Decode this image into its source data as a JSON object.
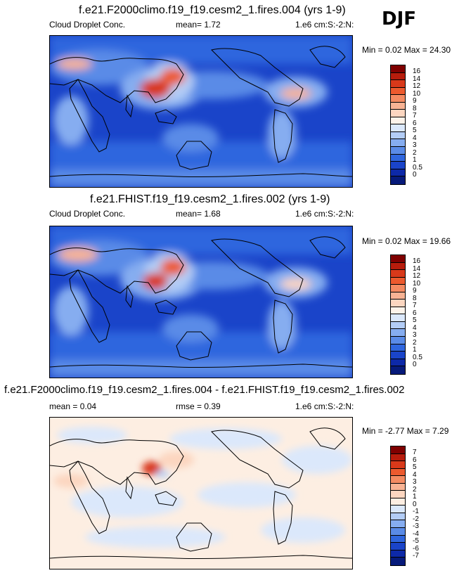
{
  "season": "DJF",
  "panels": [
    {
      "title": "f.e21.F2000climo.f19_f19.cesm2_1.fires.004 (yrs 1-9)",
      "variable": "Cloud Droplet Conc.",
      "mean": "mean=   1.72",
      "units": "1.e6 cm:S:-2:N:",
      "minmax": "Min =   0.02 Max =  24.30",
      "levels": [
        "16",
        "14",
        "12",
        "10",
        "9",
        "8",
        "7",
        "6",
        "5",
        "4",
        "3",
        "2",
        "1",
        "0.5",
        "0"
      ],
      "colors": [
        "#7f0000",
        "#b71c0c",
        "#d8391a",
        "#ec5a2e",
        "#f48b62",
        "#f8b394",
        "#fcd6c0",
        "#fdf3ea",
        "#dbe8fb",
        "#b3cdf6",
        "#86adf0",
        "#5a8be7",
        "#2f66de",
        "#1a44c9",
        "#0d29a8",
        "#061a7a"
      ],
      "overlay": "base"
    },
    {
      "title": "f.e21.FHIST.f19_f19.cesm2_1.fires.002 (yrs 1-9)",
      "variable": "Cloud Droplet Conc.",
      "mean": "mean=   1.68",
      "units": "1.e6 cm:S:-2:N:",
      "minmax": "Min =   0.02 Max =  19.66",
      "levels": [
        "16",
        "14",
        "12",
        "10",
        "9",
        "8",
        "7",
        "6",
        "5",
        "4",
        "3",
        "2",
        "1",
        "0.5",
        "0"
      ],
      "colors": [
        "#7f0000",
        "#b71c0c",
        "#d8391a",
        "#ec5a2e",
        "#f48b62",
        "#f8b394",
        "#fcd6c0",
        "#fdf3ea",
        "#dbe8fb",
        "#b3cdf6",
        "#86adf0",
        "#5a8be7",
        "#2f66de",
        "#1a44c9",
        "#0d29a8",
        "#061a7a"
      ],
      "overlay": "base"
    },
    {
      "title": "f.e21.F2000climo.f19_f19.cesm2_1.fires.004 - f.e21.FHIST.f19_f19.cesm2_1.fires.002",
      "mean": "mean =   0.04",
      "rmse": "rmse =   0.39",
      "units": "1.e6 cm:S:-2:N:",
      "minmax": "Min =  -2.77 Max =   7.29",
      "levels": [
        "7",
        "6",
        "5",
        "4",
        "3",
        "2",
        "1",
        "0",
        "-1",
        "-2",
        "-3",
        "-4",
        "-5",
        "-6",
        "-7"
      ],
      "colors": [
        "#7f0000",
        "#b71c0c",
        "#d8391a",
        "#ec5a2e",
        "#f48b62",
        "#f8b394",
        "#fcd6c0",
        "#fdeee2",
        "#dbe8fb",
        "#b3cdf6",
        "#86adf0",
        "#5a8be7",
        "#2f66de",
        "#1a44c9",
        "#0d29a8",
        "#061a7a"
      ],
      "overlay": "diff"
    }
  ]
}
